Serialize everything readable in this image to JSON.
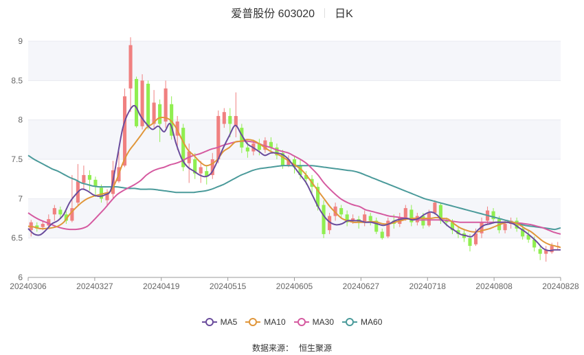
{
  "title": {
    "name": "爱普股份 603020",
    "period": "日K"
  },
  "source": {
    "label": "数据来源：",
    "provider": "恒生聚源"
  },
  "chart_data": {
    "type": "candlestick",
    "ylim": [
      6,
      9
    ],
    "yticks": [
      "6",
      "6.5",
      "7",
      "7.5",
      "8",
      "8.5",
      "9"
    ],
    "xticks": [
      "20240306",
      "20240327",
      "20240419",
      "20240515",
      "20240605",
      "20240627",
      "20240718",
      "20240808",
      "20240828"
    ],
    "grid": "horizontal bands",
    "legend_position": "bottom",
    "colors": {
      "up": "#f08080",
      "down": "#90ee50",
      "band": "#f5f6fa",
      "axis": "#999999"
    },
    "series": [
      {
        "name": "MA5",
        "color": "#6a4c9c",
        "values": [
          6.62,
          6.55,
          6.54,
          6.6,
          6.68,
          6.72,
          6.8,
          6.95,
          7.05,
          7.12,
          7.1,
          7.05,
          7.03,
          7.05,
          7.12,
          7.5,
          7.9,
          8.1,
          8.18,
          8.05,
          7.95,
          7.88,
          7.92,
          7.85,
          7.95,
          7.7,
          7.5,
          7.4,
          7.35,
          7.3,
          7.28,
          7.33,
          7.48,
          7.65,
          7.8,
          7.93,
          7.82,
          7.7,
          7.65,
          7.6,
          7.55,
          7.58,
          7.58,
          7.56,
          7.5,
          7.4,
          7.3,
          7.2,
          7.05,
          6.9,
          6.78,
          6.7,
          6.67,
          6.68,
          6.72,
          6.72,
          6.72,
          6.7,
          6.7,
          6.68,
          6.66,
          6.68,
          6.72,
          6.74,
          6.75,
          6.73,
          6.75,
          6.8,
          6.83,
          6.8,
          6.72,
          6.65,
          6.6,
          6.55,
          6.53,
          6.52,
          6.6,
          6.66,
          6.68,
          6.7,
          6.7,
          6.7,
          6.68,
          6.63,
          6.58,
          6.52,
          6.45,
          6.37,
          6.34,
          6.35,
          6.35
        ]
      },
      {
        "name": "MA10",
        "color": "#e0963a",
        "values": [
          6.65,
          6.64,
          6.62,
          6.62,
          6.63,
          6.65,
          6.7,
          6.8,
          6.88,
          6.95,
          7.0,
          7.03,
          7.05,
          7.07,
          7.1,
          7.25,
          7.45,
          7.6,
          7.7,
          7.8,
          7.9,
          7.95,
          8.02,
          8.03,
          8.0,
          7.9,
          7.75,
          7.62,
          7.55,
          7.47,
          7.42,
          7.44,
          7.5,
          7.6,
          7.65,
          7.72,
          7.73,
          7.75,
          7.74,
          7.7,
          7.65,
          7.6,
          7.57,
          7.53,
          7.48,
          7.43,
          7.38,
          7.3,
          7.2,
          7.1,
          7.0,
          6.9,
          6.82,
          6.75,
          6.72,
          6.7,
          6.7,
          6.7,
          6.71,
          6.7,
          6.68,
          6.68,
          6.7,
          6.72,
          6.74,
          6.75,
          6.75,
          6.75,
          6.75,
          6.76,
          6.75,
          6.74,
          6.68,
          6.63,
          6.6,
          6.58,
          6.58,
          6.6,
          6.62,
          6.65,
          6.68,
          6.7,
          6.7,
          6.67,
          6.62,
          6.58,
          6.52,
          6.46,
          6.42,
          6.4,
          6.38
        ]
      },
      {
        "name": "MA30",
        "color": "#d55aa0",
        "values": [
          6.82,
          6.77,
          6.73,
          6.7,
          6.67,
          6.64,
          6.62,
          6.61,
          6.61,
          6.62,
          6.65,
          6.72,
          6.8,
          6.88,
          6.97,
          7.05,
          7.1,
          7.14,
          7.18,
          7.23,
          7.3,
          7.35,
          7.38,
          7.4,
          7.43,
          7.45,
          7.48,
          7.52,
          7.55,
          7.57,
          7.6,
          7.63,
          7.65,
          7.68,
          7.7,
          7.72,
          7.73,
          7.73,
          7.72,
          7.7,
          7.67,
          7.65,
          7.62,
          7.6,
          7.58,
          7.54,
          7.5,
          7.45,
          7.38,
          7.3,
          7.2,
          7.12,
          7.05,
          6.99,
          6.95,
          6.92,
          6.9,
          6.86,
          6.84,
          6.82,
          6.8,
          6.78,
          6.77,
          6.76,
          6.75,
          6.74,
          6.73,
          6.73,
          6.73,
          6.73,
          6.73,
          6.72,
          6.71,
          6.7,
          6.7,
          6.7,
          6.7,
          6.7,
          6.7,
          6.7,
          6.7,
          6.7,
          6.69,
          6.69,
          6.68,
          6.67,
          6.65,
          6.63,
          6.6,
          6.57,
          6.55
        ]
      },
      {
        "name": "MA60",
        "color": "#4a9a9a",
        "values": [
          7.55,
          7.5,
          7.46,
          7.42,
          7.38,
          7.35,
          7.31,
          7.27,
          7.24,
          7.2,
          7.18,
          7.16,
          7.15,
          7.15,
          7.15,
          7.15,
          7.14,
          7.13,
          7.13,
          7.12,
          7.12,
          7.12,
          7.11,
          7.1,
          7.09,
          7.08,
          7.08,
          7.08,
          7.08,
          7.09,
          7.1,
          7.12,
          7.15,
          7.18,
          7.22,
          7.26,
          7.3,
          7.33,
          7.36,
          7.38,
          7.39,
          7.4,
          7.41,
          7.42,
          7.42,
          7.42,
          7.42,
          7.42,
          7.42,
          7.41,
          7.4,
          7.39,
          7.38,
          7.37,
          7.36,
          7.35,
          7.33,
          7.3,
          7.27,
          7.24,
          7.21,
          7.18,
          7.15,
          7.12,
          7.09,
          7.06,
          7.03,
          7.0,
          6.98,
          6.96,
          6.94,
          6.92,
          6.9,
          6.88,
          6.86,
          6.84,
          6.82,
          6.8,
          6.78,
          6.76,
          6.74,
          6.72,
          6.7,
          6.68,
          6.66,
          6.65,
          6.64,
          6.63,
          6.62,
          6.61,
          6.63
        ]
      }
    ],
    "candles": [
      [
        6.6,
        6.7,
        6.52,
        6.73
      ],
      [
        6.66,
        6.62,
        6.58,
        6.7
      ],
      [
        6.64,
        6.68,
        6.6,
        6.72
      ],
      [
        6.66,
        6.74,
        6.62,
        6.8
      ],
      [
        6.8,
        6.88,
        6.72,
        6.92
      ],
      [
        6.86,
        6.8,
        6.74,
        6.9
      ],
      [
        6.8,
        6.72,
        6.68,
        6.84
      ],
      [
        6.72,
        6.88,
        6.7,
        7.3
      ],
      [
        6.95,
        7.22,
        6.92,
        7.44
      ],
      [
        7.2,
        7.3,
        7.12,
        7.42
      ],
      [
        7.3,
        7.24,
        7.1,
        7.36
      ],
      [
        7.24,
        7.16,
        7.02,
        7.28
      ],
      [
        7.14,
        7.0,
        6.95,
        7.18
      ],
      [
        6.98,
        7.06,
        6.9,
        7.12
      ],
      [
        7.06,
        7.36,
        7.0,
        7.48
      ],
      [
        7.22,
        7.4,
        7.2,
        7.6
      ],
      [
        7.42,
        8.3,
        7.4,
        8.4
      ],
      [
        8.4,
        8.95,
        8.1,
        9.05
      ],
      [
        8.52,
        7.92,
        7.9,
        8.55
      ],
      [
        7.92,
        8.5,
        7.88,
        8.58
      ],
      [
        8.46,
        7.92,
        7.88,
        8.5
      ],
      [
        7.95,
        8.22,
        7.9,
        8.38
      ],
      [
        8.2,
        7.95,
        7.72,
        8.26
      ],
      [
        7.98,
        8.4,
        7.9,
        8.5
      ],
      [
        8.2,
        7.8,
        7.75,
        8.3
      ],
      [
        7.8,
        7.98,
        7.62,
        8.05
      ],
      [
        7.9,
        7.4,
        7.35,
        7.95
      ],
      [
        7.45,
        7.6,
        7.2,
        7.7
      ],
      [
        7.5,
        7.32,
        7.25,
        7.58
      ],
      [
        7.32,
        7.4,
        7.2,
        7.48
      ],
      [
        7.35,
        7.28,
        7.18,
        7.42
      ],
      [
        7.3,
        7.5,
        7.25,
        7.58
      ],
      [
        7.5,
        8.05,
        7.45,
        8.12
      ],
      [
        7.95,
        8.1,
        7.9,
        8.15
      ],
      [
        8.05,
        7.95,
        7.78,
        8.15
      ],
      [
        7.92,
        8.05,
        7.78,
        8.35
      ],
      [
        7.9,
        7.65,
        7.58,
        7.95
      ],
      [
        7.65,
        7.6,
        7.52,
        7.72
      ],
      [
        7.6,
        7.7,
        7.55,
        7.75
      ],
      [
        7.7,
        7.62,
        7.55,
        7.76
      ],
      [
        7.62,
        7.74,
        7.58,
        7.78
      ],
      [
        7.72,
        7.65,
        7.6,
        7.78
      ],
      [
        7.65,
        7.55,
        7.5,
        7.7
      ],
      [
        7.58,
        7.42,
        7.38,
        7.62
      ],
      [
        7.42,
        7.5,
        7.4,
        7.55
      ],
      [
        7.5,
        7.4,
        7.32,
        7.55
      ],
      [
        7.42,
        7.3,
        7.25,
        7.5
      ],
      [
        7.3,
        7.25,
        7.18,
        7.35
      ],
      [
        7.25,
        7.15,
        7.05,
        7.3
      ],
      [
        7.15,
        6.9,
        6.85,
        7.2
      ],
      [
        6.92,
        6.55,
        6.5,
        6.98
      ],
      [
        6.6,
        6.78,
        6.55,
        6.82
      ],
      [
        6.78,
        6.9,
        6.72,
        6.95
      ],
      [
        6.88,
        6.8,
        6.75,
        6.92
      ],
      [
        6.8,
        6.7,
        6.65,
        6.85
      ],
      [
        6.72,
        6.75,
        6.68,
        6.8
      ],
      [
        6.74,
        6.7,
        6.62,
        6.78
      ],
      [
        6.7,
        6.8,
        6.65,
        6.85
      ],
      [
        6.78,
        6.72,
        6.66,
        6.82
      ],
      [
        6.72,
        6.58,
        6.55,
        6.76
      ],
      [
        6.58,
        6.5,
        6.48,
        6.62
      ],
      [
        6.52,
        6.72,
        6.5,
        6.76
      ],
      [
        6.72,
        6.68,
        6.62,
        6.8
      ],
      [
        6.68,
        6.76,
        6.64,
        6.82
      ],
      [
        6.76,
        6.88,
        6.72,
        6.92
      ],
      [
        6.86,
        6.7,
        6.65,
        6.92
      ],
      [
        6.7,
        6.78,
        6.66,
        6.82
      ],
      [
        6.78,
        6.66,
        6.62,
        6.82
      ],
      [
        6.66,
        6.82,
        6.64,
        6.86
      ],
      [
        6.82,
        6.95,
        6.8,
        6.98
      ],
      [
        6.92,
        6.72,
        6.68,
        6.95
      ],
      [
        6.72,
        6.7,
        6.65,
        6.76
      ],
      [
        6.7,
        6.6,
        6.55,
        6.74
      ],
      [
        6.6,
        6.55,
        6.5,
        6.65
      ],
      [
        6.56,
        6.5,
        6.45,
        6.6
      ],
      [
        6.5,
        6.4,
        6.33,
        6.55
      ],
      [
        6.42,
        6.56,
        6.4,
        6.62
      ],
      [
        6.56,
        6.7,
        6.5,
        6.76
      ],
      [
        6.72,
        6.85,
        6.68,
        6.9
      ],
      [
        6.84,
        6.74,
        6.7,
        6.88
      ],
      [
        6.74,
        6.6,
        6.56,
        6.78
      ],
      [
        6.6,
        6.68,
        6.56,
        6.72
      ],
      [
        6.68,
        6.72,
        6.62,
        6.76
      ],
      [
        6.72,
        6.62,
        6.58,
        6.76
      ],
      [
        6.62,
        6.52,
        6.48,
        6.66
      ],
      [
        6.54,
        6.48,
        6.44,
        6.6
      ],
      [
        6.48,
        6.38,
        6.33,
        6.52
      ],
      [
        6.36,
        6.3,
        6.22,
        6.4
      ],
      [
        6.3,
        6.35,
        6.2,
        6.4
      ],
      [
        6.32,
        6.4,
        6.3,
        6.44
      ],
      [
        6.4,
        6.4,
        6.35,
        6.45
      ]
    ]
  }
}
